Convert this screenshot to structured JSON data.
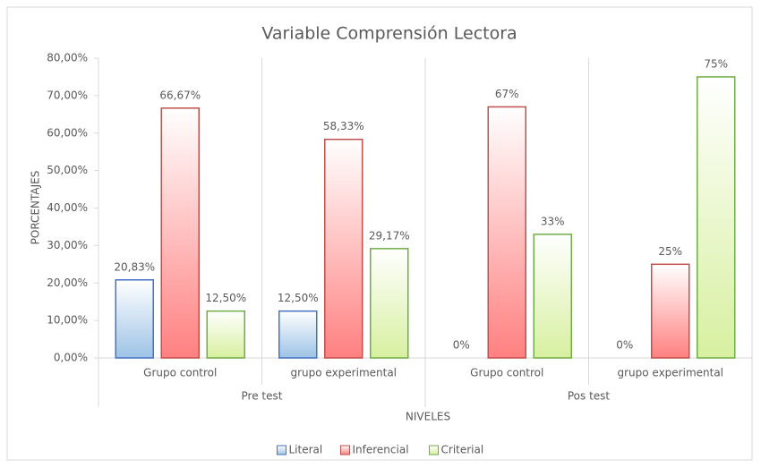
{
  "chart_data": {
    "type": "bar",
    "title": "Variable Comprensión Lectora",
    "x_label": "NIVELES",
    "y_label": "PORCENTAJES",
    "groups": [
      {
        "label": "Pre test",
        "categories": [
          "Grupo control",
          "grupo experimental"
        ]
      },
      {
        "label": "Pos test",
        "categories": [
          "Grupo control",
          "grupo experimental"
        ]
      }
    ],
    "series": [
      {
        "name": "Literal",
        "color": "#9dc3e6",
        "edgecolor": "#4472c4",
        "values": [
          20.83,
          12.5,
          0,
          0
        ],
        "value_labels": [
          "20,83%",
          "12,50%",
          "0%",
          "0%"
        ]
      },
      {
        "name": "Inferencial",
        "color": "#ff8080",
        "edgecolor": "#c0504d",
        "values": [
          66.67,
          58.33,
          67,
          25
        ],
        "value_labels": [
          "66,67%",
          "58,33%",
          "67%",
          "25%"
        ]
      },
      {
        "name": "Criterial",
        "color": "#d7f0a0",
        "edgecolor": "#70ad47",
        "values": [
          12.5,
          29.17,
          33,
          75
        ],
        "value_labels": [
          "12,50%",
          "29,17%",
          "33%",
          "75%"
        ]
      }
    ],
    "ylim": [
      0,
      80
    ],
    "yticks": [
      {
        "value": 0,
        "label": "0,00%"
      },
      {
        "value": 10,
        "label": "10,00%"
      },
      {
        "value": 20,
        "label": "20,00%"
      },
      {
        "value": 30,
        "label": "30,00%"
      },
      {
        "value": 40,
        "label": "40,00%"
      },
      {
        "value": 50,
        "label": "50,00%"
      },
      {
        "value": 60,
        "label": "60,00%"
      },
      {
        "value": 70,
        "label": "70,00%"
      },
      {
        "value": 80,
        "label": "80,00%"
      }
    ],
    "legend": "bottom"
  }
}
